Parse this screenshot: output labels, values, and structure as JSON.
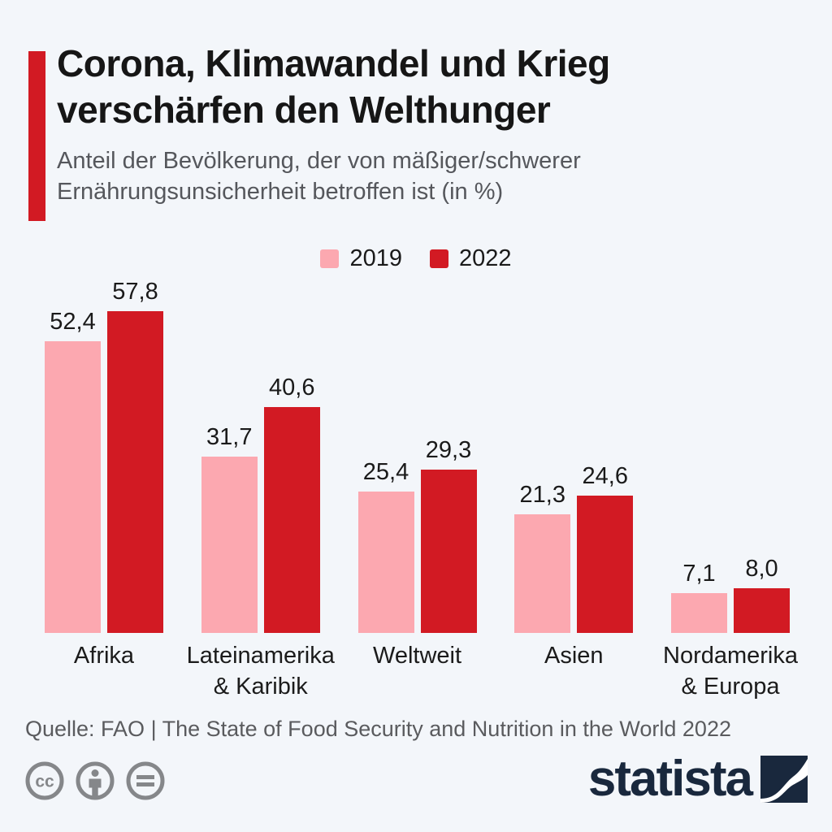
{
  "header": {
    "title": "Corona, Klimawandel und Krieg\nverschärfen den Welthunger",
    "subtitle": "Anteil der Bevölkerung, der von mäßiger/schwerer\nErnährungsunsicherheit betroffen ist (in %)",
    "accent_color": "#d21a23"
  },
  "legend": {
    "items": [
      {
        "label": "2019",
        "color": "#fca8b0"
      },
      {
        "label": "2022",
        "color": "#d21a23"
      }
    ]
  },
  "chart_data": {
    "type": "bar",
    "title": "Corona, Klimawandel und Krieg verschärfen den Welthunger",
    "subtitle": "Anteil der Bevölkerung, der von mäßiger/schwerer Ernährungsunsicherheit betroffen ist (in %)",
    "unit": "%",
    "decimal_separator": ",",
    "categories": [
      "Afrika",
      "Lateinamerika\n& Karibik",
      "Weltweit",
      "Asien",
      "Nordamerika\n& Europa"
    ],
    "series": [
      {
        "name": "2019",
        "color": "#fca8b0",
        "values": [
          52.4,
          31.7,
          25.4,
          21.3,
          7.1
        ]
      },
      {
        "name": "2022",
        "color": "#d21a23",
        "values": [
          57.8,
          40.6,
          29.3,
          24.6,
          8.0
        ]
      }
    ],
    "ylim": [
      0,
      63
    ],
    "grid": false,
    "legend_position": "top-center",
    "value_labels_shown": true
  },
  "footer": {
    "source": "Quelle: FAO | The State of Food Security and Nutrition in the World 2022",
    "license_icons": [
      "cc-icon",
      "attribution-person-icon",
      "no-derivatives-equals-icon"
    ],
    "brand": {
      "name": "statista",
      "color": "#19283d"
    }
  }
}
